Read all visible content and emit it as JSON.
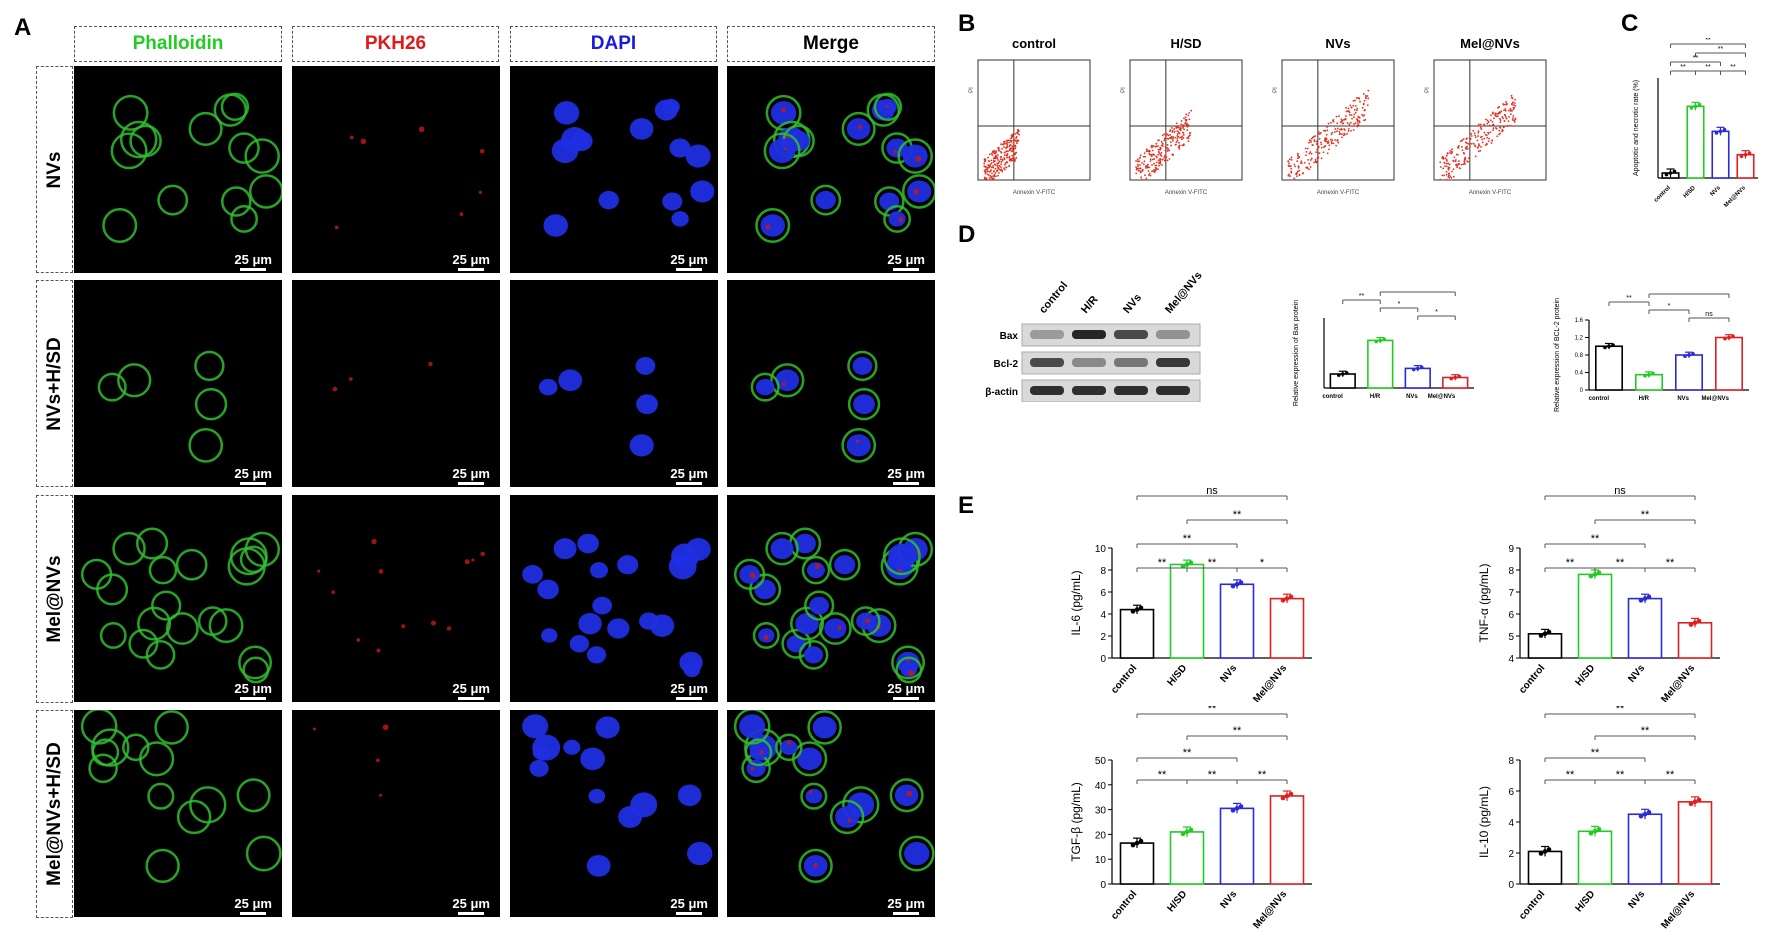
{
  "panels": {
    "A": "A",
    "B": "B",
    "C": "C",
    "D": "D",
    "E": "E"
  },
  "panelA": {
    "columns": [
      {
        "label": "Phalloidin",
        "color": "#22cc22"
      },
      {
        "label": "PKH26",
        "color": "#e01a1a"
      },
      {
        "label": "DAPI",
        "color": "#1a1ae0"
      },
      {
        "label": "Merge",
        "color": "#000000"
      }
    ],
    "rows": [
      "NVs",
      "NVs+H/SD",
      "Mel@NVs",
      "Mel@NVs+H/SD"
    ],
    "scale_bar": "25 μm"
  },
  "panelB": {
    "plots": [
      "control",
      "H/SD",
      "NVs",
      "Mel@NVs"
    ],
    "xaxis": "Annexin V-FITC",
    "yaxis": "PI"
  },
  "panelD": {
    "lanes": [
      "control",
      "H/R",
      "NVs",
      "Mel@NVs"
    ],
    "bands": [
      "Bax",
      "Bcl-2",
      "β-actin"
    ]
  },
  "chart_data": [
    {
      "id": "C",
      "type": "bar",
      "ylabel": "Apoptotic and necrotic rate (%)",
      "categories": [
        "control",
        "H/SD",
        "NVs",
        "Mel@NVs"
      ],
      "values": [
        3,
        43,
        28,
        14
      ],
      "ylim": [
        0,
        60
      ],
      "sig": [
        "**",
        "**",
        "**",
        "**",
        "**",
        "**"
      ]
    },
    {
      "id": "D-Bax",
      "type": "bar",
      "ylabel": "Relative expression of Bax protein",
      "categories": [
        "control",
        "H/R",
        "NVs",
        "Mel@NVs"
      ],
      "values": [
        1.0,
        3.4,
        1.4,
        0.75
      ],
      "ylim": [
        0,
        5
      ],
      "sig": [
        "**",
        "*",
        "**",
        "*"
      ]
    },
    {
      "id": "D-Bcl2",
      "type": "bar",
      "ylabel": "Relative expression of BCL-2 protein",
      "categories": [
        "control",
        "H/R",
        "NVs",
        "Mel@NVs"
      ],
      "values": [
        1.0,
        0.35,
        0.8,
        1.2
      ],
      "ylim": [
        0,
        1.6
      ],
      "yticks": [
        0,
        0.4,
        0.8,
        1.2,
        1.6
      ],
      "sig": [
        "**",
        "*",
        "**",
        "ns"
      ]
    },
    {
      "id": "E-IL6",
      "type": "bar",
      "ylabel": "IL-6 (pg/mL)",
      "categories": [
        "control",
        "H/SD",
        "NVs",
        "Mel@NVs"
      ],
      "tick_labels": [
        "control",
        "H/SD",
        "NVs",
        "Mel@NVs"
      ],
      "values": [
        4.4,
        8.5,
        6.7,
        5.4
      ],
      "ylim": [
        0,
        10
      ],
      "yticks": [
        0,
        2,
        4,
        6,
        8,
        10
      ],
      "sig": [
        "ns",
        "**",
        "**",
        "**",
        "**",
        "*"
      ]
    },
    {
      "id": "E-TNFa",
      "type": "bar",
      "ylabel": "TNF-α (pg/mL)",
      "categories": [
        "control",
        "H/SD",
        "NVs",
        "Mel@NVs"
      ],
      "values": [
        5.1,
        7.8,
        6.7,
        5.6
      ],
      "ylim": [
        4,
        9
      ],
      "yticks": [
        4,
        5,
        6,
        7,
        8,
        9
      ],
      "sig": [
        "ns",
        "**",
        "**",
        "**",
        "**",
        "**"
      ]
    },
    {
      "id": "E-TGFb",
      "type": "bar",
      "ylabel": "TGF-β (pg/mL)",
      "categories": [
        "control",
        "H/SD",
        "NVs",
        "Mel@NVs"
      ],
      "values": [
        16.5,
        21,
        30.5,
        35.5
      ],
      "ylim": [
        0,
        50
      ],
      "yticks": [
        0,
        10,
        20,
        30,
        40,
        50
      ],
      "sig": [
        "**",
        "**",
        "**",
        "**",
        "**",
        "**"
      ]
    },
    {
      "id": "E-IL10",
      "type": "bar",
      "ylabel": "IL-10 (pg/mL)",
      "categories": [
        "control",
        "H/SD",
        "NVs",
        "Mel@NVs"
      ],
      "values": [
        2.1,
        3.4,
        4.5,
        5.3
      ],
      "ylim": [
        0,
        8
      ],
      "yticks": [
        0,
        2,
        4,
        6,
        8
      ],
      "sig": [
        "**",
        "**",
        "**",
        "**",
        "**",
        "**"
      ]
    }
  ],
  "colors": {
    "control": "#000000",
    "group2": "#22cc22",
    "group3": "#2a2ad8",
    "group4": "#e02020"
  }
}
